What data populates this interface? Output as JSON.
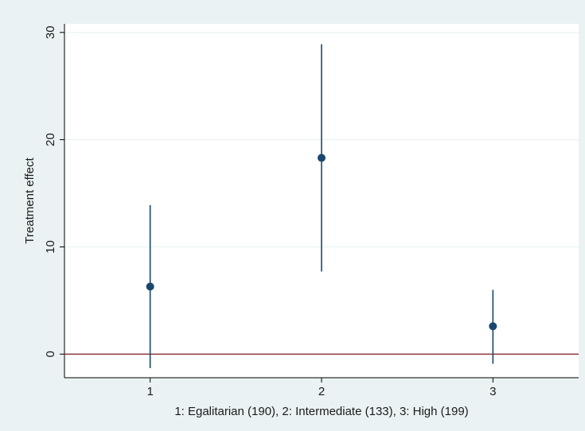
{
  "chart_data": {
    "type": "scatter",
    "subtype": "point-estimate with confidence interval",
    "xlabel": "1: Egalitarian (190), 2: Intermediate (133), 3: High (199)",
    "ylabel": "Treatment effect",
    "xlim": [
      0.5,
      3.5
    ],
    "ylim": [
      -2.2,
      30.8
    ],
    "x_ticks": [
      1,
      2,
      3
    ],
    "y_ticks": [
      0,
      10,
      20,
      30
    ],
    "grid": "horizontal",
    "legend": "none",
    "series": [
      {
        "points": [
          {
            "x": 1,
            "y": 6.3,
            "ci_low": -1.3,
            "ci_high": 13.9
          },
          {
            "x": 2,
            "y": 18.3,
            "ci_low": 7.7,
            "ci_high": 28.9
          },
          {
            "x": 3,
            "y": 2.6,
            "ci_low": -0.9,
            "ci_high": 6.0
          }
        ]
      }
    ],
    "reference_line": {
      "y": 0
    },
    "colors": {
      "outer_background": "#eaf2f3",
      "plot_background": "#ffffff",
      "gridline": "#eaf2f3",
      "marker": "#1a476f",
      "reference_line": "#90353b",
      "axis": "#000000"
    }
  }
}
